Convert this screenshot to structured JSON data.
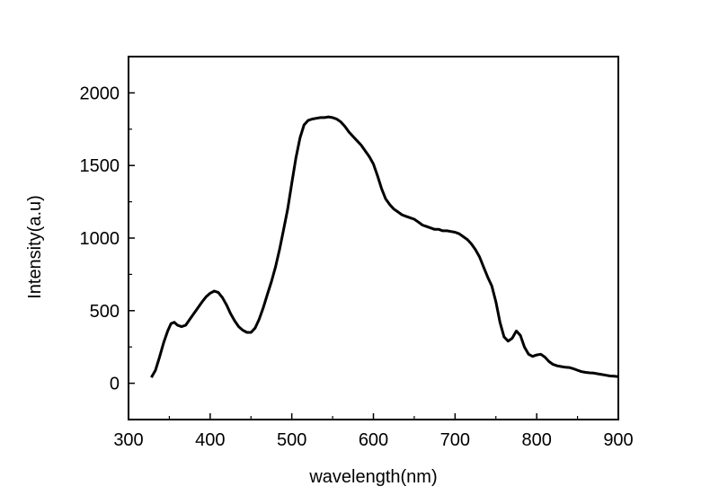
{
  "chart_data": {
    "type": "line",
    "title": "",
    "xlabel": "wavelength(nm)",
    "ylabel": "Intensity(a.u)",
    "xlim": [
      300,
      900
    ],
    "ylim": [
      -250,
      2250
    ],
    "xticks": [
      300,
      400,
      500,
      600,
      700,
      800,
      900
    ],
    "yticks": [
      0,
      500,
      1000,
      1500,
      2000
    ],
    "xtick_labels": [
      "300",
      "400",
      "500",
      "600",
      "700",
      "800",
      "900"
    ],
    "ytick_labels": [
      "0",
      "500",
      "1000",
      "1500",
      "2000"
    ],
    "grid": false,
    "legend": "none",
    "line_color": "#000000",
    "series": [
      {
        "x": [
          328,
          333,
          338,
          343,
          348,
          352,
          356,
          360,
          365,
          370,
          375,
          380,
          385,
          390,
          395,
          400,
          405,
          410,
          415,
          420,
          425,
          430,
          435,
          440,
          445,
          450,
          455,
          460,
          465,
          470,
          475,
          480,
          485,
          490,
          495,
          500,
          505,
          510,
          515,
          520,
          525,
          530,
          535,
          540,
          545,
          550,
          555,
          560,
          565,
          570,
          575,
          580,
          585,
          590,
          595,
          600,
          605,
          610,
          615,
          620,
          625,
          630,
          635,
          640,
          645,
          650,
          655,
          660,
          665,
          670,
          675,
          680,
          685,
          690,
          695,
          700,
          705,
          710,
          715,
          720,
          725,
          730,
          735,
          740,
          745,
          750,
          755,
          760,
          765,
          770,
          775,
          780,
          785,
          790,
          795,
          800,
          805,
          810,
          815,
          820,
          825,
          830,
          835,
          840,
          845,
          850,
          855,
          860,
          865,
          870,
          875,
          880,
          885,
          890,
          895,
          900
        ],
        "y": [
          40,
          90,
          180,
          280,
          360,
          410,
          420,
          400,
          390,
          400,
          440,
          480,
          520,
          560,
          595,
          620,
          635,
          625,
          590,
          540,
          480,
          430,
          390,
          365,
          350,
          350,
          380,
          440,
          520,
          610,
          700,
          800,
          920,
          1060,
          1200,
          1380,
          1550,
          1690,
          1780,
          1810,
          1820,
          1825,
          1830,
          1830,
          1835,
          1830,
          1820,
          1800,
          1770,
          1730,
          1700,
          1670,
          1640,
          1600,
          1560,
          1510,
          1430,
          1340,
          1270,
          1230,
          1200,
          1180,
          1160,
          1150,
          1140,
          1130,
          1110,
          1090,
          1080,
          1070,
          1060,
          1060,
          1050,
          1050,
          1045,
          1040,
          1030,
          1010,
          990,
          960,
          920,
          870,
          800,
          730,
          670,
          560,
          420,
          320,
          290,
          310,
          360,
          330,
          250,
          200,
          185,
          195,
          200,
          180,
          150,
          130,
          120,
          115,
          110,
          108,
          100,
          90,
          80,
          75,
          72,
          70,
          65,
          60,
          55,
          50,
          48,
          45
        ]
      }
    ]
  }
}
